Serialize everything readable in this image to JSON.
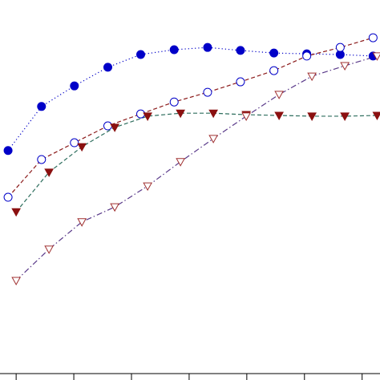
{
  "chart_data": {
    "type": "line",
    "xlim": [
      -2.8,
      63.1
    ],
    "ylim": [
      0,
      100
    ],
    "xticks": [
      0,
      10,
      20,
      30,
      40,
      50,
      60
    ],
    "series": [
      {
        "color": "#0000c8",
        "marker": "circle",
        "marker_color": "#0000c8",
        "filled": true,
        "linestyle": "dotted",
        "x": [
          -1.4,
          4.4,
          10.1,
          15.9,
          21.6,
          27.4,
          33.2,
          38.9,
          44.7,
          50.4,
          56.2,
          61.9
        ],
        "values": [
          59.7,
          71.5,
          77.0,
          82.0,
          85.4,
          86.7,
          87.3,
          86.5,
          85.8,
          85.6,
          85.4,
          85.0
        ]
      },
      {
        "color": "#8b1a1a",
        "marker": "circle",
        "marker_color": "#0000c8",
        "filled": false,
        "linestyle": "dashed",
        "x": [
          -1.4,
          4.4,
          10.1,
          15.9,
          21.6,
          27.4,
          33.2,
          38.9,
          44.7,
          50.4,
          56.2,
          61.9
        ],
        "values": [
          47.2,
          57.3,
          61.8,
          66.3,
          69.5,
          72.7,
          75.3,
          78.1,
          81.1,
          85.0,
          87.3,
          89.9
        ]
      },
      {
        "color": "#2e6e5e",
        "marker": "triangle-down",
        "marker_color": "#8b1010",
        "filled": true,
        "linestyle": "dashed",
        "x": [
          0,
          5.7,
          11.4,
          17.1,
          22.8,
          28.5,
          34.2,
          39.9,
          45.6,
          51.3,
          57.0,
          62.6
        ],
        "values": [
          43.3,
          53.9,
          60.7,
          65.9,
          68.9,
          69.7,
          69.7,
          69.3,
          69.1,
          68.9,
          68.9,
          69.1
        ]
      },
      {
        "color": "#5a3a8a",
        "marker": "triangle-down",
        "marker_color": "#a03030",
        "filled": false,
        "linestyle": "dashdot",
        "x": [
          0,
          5.7,
          11.4,
          17.1,
          22.8,
          28.5,
          34.2,
          39.9,
          45.6,
          51.3,
          57.0,
          62.6
        ],
        "values": [
          24.9,
          33.3,
          40.6,
          44.6,
          50.2,
          56.7,
          62.9,
          68.9,
          74.7,
          79.6,
          82.4,
          85.0
        ]
      }
    ]
  }
}
